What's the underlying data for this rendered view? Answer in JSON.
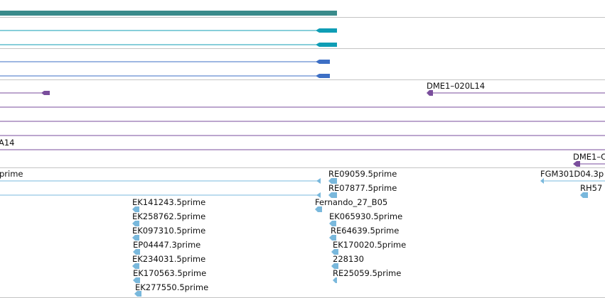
{
  "colors": {
    "teal": "#3a8b8b",
    "cyan": "#0f9db5",
    "blue": "#3d6fc5",
    "purple": "#7a4e9c",
    "light_blue": "#79b8dc",
    "separator": "#c4c4c4"
  },
  "track_labels": {
    "dme1_020l14": "DME1–020L14",
    "a14": "A14",
    "dme1_truncated": "DME1–C"
  },
  "est_labels": {
    "prime_left": "prime",
    "re09059": "RE09059.5prime",
    "re07877": "RE07877.5prime",
    "fgm301d04": "FGM301D04.3p",
    "rh57": "RH57",
    "ek141243": "EK141243.5prime",
    "fernando": "Fernando_27_B05",
    "ek258762": "EK258762.5prime",
    "ek065930": "EK065930.5prime",
    "ek097310": "EK097310.5prime",
    "re64639": "RE64639.5prime",
    "ep04447": "EP04447.3prime",
    "ek170020": "EK170020.5prime",
    "ek234031": "EK234031.5prime",
    "n228130": "228130",
    "ek170563": "EK170563.5prime",
    "re25059": "RE25059.5prime",
    "ek277550": "EK277550.5prime"
  }
}
